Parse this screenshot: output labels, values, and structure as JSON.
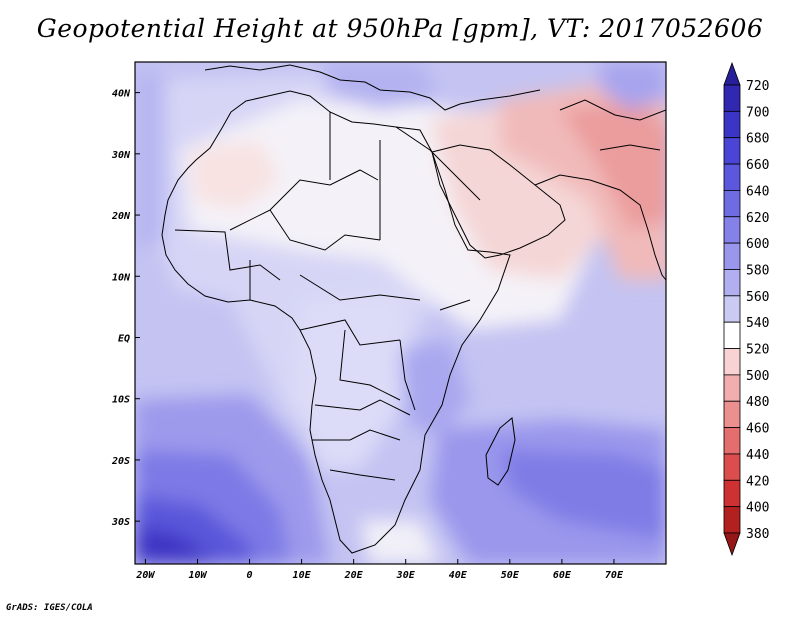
{
  "title": "Geopotential Height at 950hPa [gpm], VT: 2017052606",
  "credit": "GrADS: IGES/COLA",
  "map": {
    "lat_ticks": [
      "40N",
      "30N",
      "20N",
      "10N",
      "EQ",
      "10S",
      "20S",
      "30S"
    ],
    "lon_ticks": [
      "20W",
      "10W",
      "0",
      "10E",
      "20E",
      "30E",
      "40E",
      "50E",
      "60E",
      "70E"
    ],
    "lon_range": [
      -22,
      80
    ],
    "lat_range": [
      -37,
      45
    ]
  },
  "colorbar": {
    "labels": [
      "720",
      "700",
      "680",
      "660",
      "640",
      "620",
      "600",
      "580",
      "560",
      "540",
      "520",
      "500",
      "480",
      "460",
      "440",
      "420",
      "400",
      "380"
    ],
    "colors": [
      "#27209a",
      "#3028b0",
      "#3b35c6",
      "#4a45d6",
      "#5b58de",
      "#6f6ce3",
      "#8481e8",
      "#9997ec",
      "#b1afef",
      "#cbcaf3",
      "#ffffff",
      "#f9d3d3",
      "#f2aeae",
      "#eb8f8f",
      "#e46e6e",
      "#dc4d4d",
      "#cd3131",
      "#b32020",
      "#951717"
    ]
  }
}
